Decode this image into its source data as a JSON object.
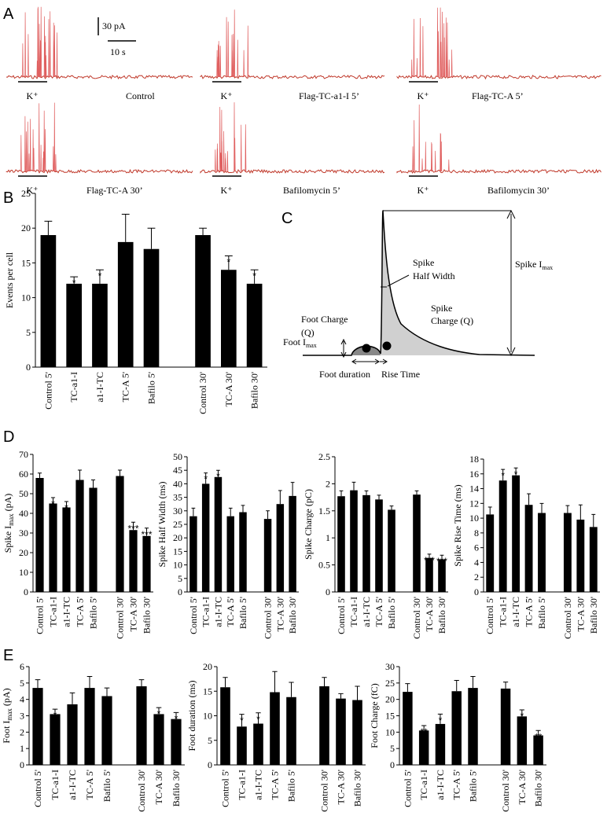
{
  "panel_labels": [
    "A",
    "B",
    "C",
    "D",
    "E"
  ],
  "traces": {
    "scale_current": "30 pA",
    "scale_time": "10 s",
    "stimulus": "K⁺",
    "labels": [
      "Control",
      "Flag-TC-a1-I 5’",
      "Flag-TC-A 5’",
      "Flag-TC-A 30’",
      "Bafilomycin 5’",
      "Bafilomycin 30’"
    ]
  },
  "diagram": {
    "spike_half_width": [
      "Spike",
      "Half Width"
    ],
    "spike_imax": [
      "Spike I",
      "max"
    ],
    "foot_charge": [
      "Foot Charge",
      "(Q)"
    ],
    "spike_charge": [
      "Spike",
      "Charge (Q)"
    ],
    "foot_imax": [
      "Foot I",
      "max"
    ],
    "foot_duration": "Foot duration",
    "rise_time": "Rise Time"
  },
  "chart_data": [
    {
      "type": "bar",
      "y_label": "Events per cell",
      "color": "#000000",
      "categories": [
        "Control 5'",
        "TC-a1-I",
        "a1-I-TC",
        "TC-A 5'",
        "Bafilo 5'",
        null,
        "Control 30'",
        "TC-A 30'",
        "Bafilo 30'"
      ],
      "values": [
        19,
        12,
        12,
        18,
        17,
        null,
        19,
        14,
        12
      ],
      "errors": [
        2,
        1,
        2,
        4,
        3,
        null,
        1,
        2,
        2
      ],
      "annotations": [
        null,
        "*",
        "*",
        null,
        null,
        null,
        null,
        "*",
        "*"
      ],
      "ylim": [
        0,
        25
      ],
      "yticks": [
        0,
        5,
        10,
        15,
        20,
        25
      ]
    },
    {
      "type": "bar",
      "y_label": [
        "Spike I",
        "max",
        " (pA)"
      ],
      "color": "#000000",
      "categories": [
        "Control 5'",
        "TC-a1-I",
        "a1-I-TC",
        "TC-A 5'",
        "Bafilo 5'",
        null,
        "Control 30'",
        "TC-A 30'",
        "Bafilo 30'"
      ],
      "values": [
        58,
        45,
        43,
        57,
        53,
        null,
        59,
        31.5,
        28.5
      ],
      "errors": [
        2.5,
        3,
        3,
        5,
        4,
        null,
        3,
        4,
        4
      ],
      "annotations": [
        null,
        "*",
        "*",
        null,
        null,
        null,
        null,
        "***",
        "***"
      ],
      "ylim": [
        0,
        70
      ],
      "yticks": [
        0,
        10,
        20,
        30,
        40,
        50,
        60,
        70
      ]
    },
    {
      "type": "bar",
      "y_label": "Spike Half Width (ms)",
      "color": "#000000",
      "categories": [
        "Control 5'",
        "TC-a1-I",
        "a1-I-TC",
        "TC-A 5'",
        "Bafilo 5'",
        null,
        "Control 30'",
        "TC-A 30'",
        "Bafilo 30'"
      ],
      "values": [
        28,
        40,
        42.5,
        28,
        29.5,
        null,
        27,
        32.5,
        35.5
      ],
      "errors": [
        3,
        4,
        2.5,
        3,
        2.5,
        null,
        3,
        5,
        5
      ],
      "annotations": [
        null,
        "*",
        "*",
        null,
        null,
        null,
        null,
        null,
        null
      ],
      "ylim": [
        0,
        50
      ],
      "yticks": [
        0,
        5,
        10,
        15,
        20,
        25,
        30,
        35,
        40,
        45,
        50
      ]
    },
    {
      "type": "bar",
      "y_label": "Spike Charge (pC)",
      "color": "#000000",
      "categories": [
        "Control 5'",
        "TC-a1-I",
        "a1-I-TC",
        "TC-A 5'",
        "Bafilo 5'",
        null,
        "Control 30'",
        "TC-A 30'",
        "Bafilo 30'"
      ],
      "values": [
        1.77,
        1.88,
        1.79,
        1.71,
        1.52,
        null,
        1.8,
        0.63,
        0.6
      ],
      "errors": [
        0.1,
        0.15,
        0.08,
        0.08,
        0.07,
        null,
        0.07,
        0.07,
        0.08
      ],
      "annotations": [
        null,
        null,
        null,
        null,
        null,
        null,
        null,
        "***",
        "***"
      ],
      "ylim": [
        0,
        2.5
      ],
      "yticks": [
        0,
        0.5,
        1,
        1.5,
        2,
        2.5
      ]
    },
    {
      "type": "bar",
      "y_label": "Spike Rise Time (ms)",
      "color": "#000000",
      "categories": [
        "Control 5'",
        "TC-a1-I",
        "a1-I-TC",
        "TC-A 5'",
        "Bafilo 5'",
        null,
        "Control 30'",
        "TC-A 30'",
        "Bafilo 30'"
      ],
      "values": [
        10.5,
        15.1,
        15.8,
        11.8,
        10.7,
        null,
        10.7,
        9.8,
        8.8
      ],
      "errors": [
        1,
        1.5,
        1,
        1.5,
        1.3,
        null,
        1,
        2,
        1.7
      ],
      "annotations": [
        null,
        "*",
        "*",
        null,
        null,
        null,
        null,
        null,
        null
      ],
      "ylim": [
        0,
        18
      ],
      "yticks": [
        0,
        2,
        4,
        6,
        8,
        10,
        12,
        14,
        16,
        18
      ]
    },
    {
      "type": "bar",
      "y_label": [
        "Foot I",
        "max",
        " (pA)"
      ],
      "color": "#000000",
      "categories": [
        "Control 5'",
        "TC-a1-I",
        "a1-I-TC",
        "TC-A 5'",
        "Bafilo 5'",
        null,
        "Control 30'",
        "TC-A 30'",
        "Bafilo 30'"
      ],
      "values": [
        4.7,
        3.1,
        3.7,
        4.7,
        4.2,
        null,
        4.8,
        3.1,
        2.8
      ],
      "errors": [
        0.5,
        0.3,
        0.7,
        0.7,
        0.5,
        null,
        0.4,
        0.4,
        0.4
      ],
      "annotations": [
        null,
        "*",
        null,
        null,
        null,
        null,
        null,
        "*",
        "*"
      ],
      "ylim": [
        0,
        6
      ],
      "yticks": [
        0,
        1,
        2,
        3,
        4,
        5,
        6
      ]
    },
    {
      "type": "bar",
      "y_label": "Foot duration (ms)",
      "color": "#000000",
      "categories": [
        "Control 5'",
        "TC-a1-I",
        "a1-I-TC",
        "TC-A 5'",
        "Bafilo 5'",
        null,
        "Control 30'",
        "TC-A 30'",
        "Bafilo 30'"
      ],
      "values": [
        15.8,
        7.8,
        8.4,
        14.8,
        13.8,
        null,
        16,
        13.5,
        13.2
      ],
      "errors": [
        2,
        2.5,
        2.2,
        4.2,
        3,
        null,
        1.8,
        1,
        2.8
      ],
      "annotations": [
        null,
        "*",
        "*",
        null,
        null,
        null,
        null,
        null,
        null
      ],
      "ylim": [
        0,
        20
      ],
      "yticks": [
        0,
        5,
        10,
        15,
        20
      ]
    },
    {
      "type": "bar",
      "y_label": "Foot Charge (fC)",
      "color": "#000000",
      "categories": [
        "Control 5'",
        "TC-a1-I",
        "a1-I-TC",
        "TC-A 5'",
        "Bafilo 5'",
        null,
        "Control 30'",
        "TC-A 30'",
        "Bafilo 30'"
      ],
      "values": [
        22.3,
        10.5,
        12.5,
        22.5,
        23.5,
        null,
        23.3,
        14.8,
        9
      ],
      "errors": [
        2.5,
        1.5,
        3,
        3.3,
        3.5,
        null,
        2,
        2,
        1.5
      ],
      "annotations": [
        null,
        "**",
        "*",
        null,
        null,
        null,
        null,
        "*",
        "**"
      ],
      "ylim": [
        0,
        30
      ],
      "yticks": [
        0,
        5,
        10,
        15,
        20,
        25,
        30
      ]
    }
  ]
}
